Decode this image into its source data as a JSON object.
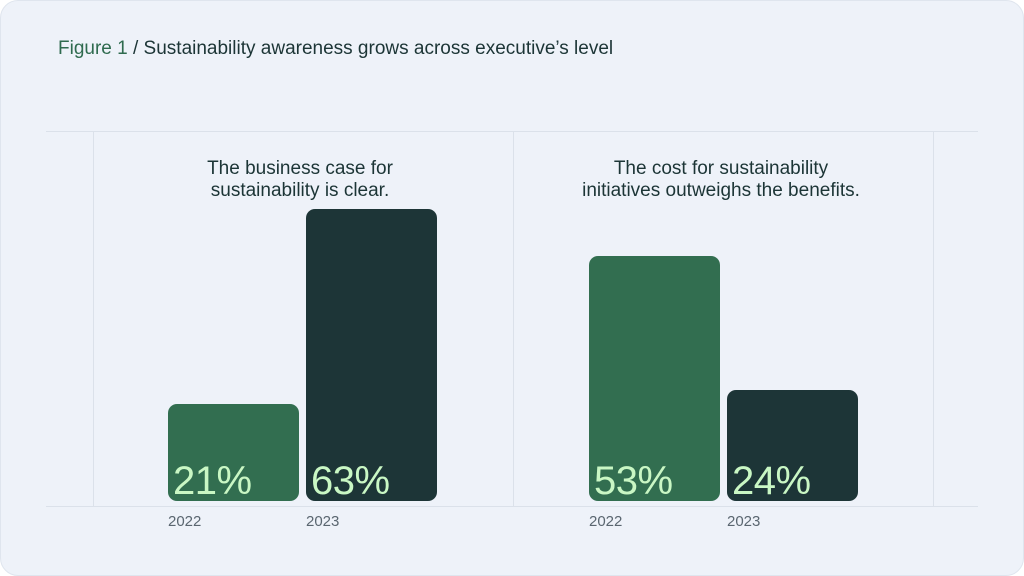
{
  "figure": {
    "number_label": "Figure 1",
    "separator": "/",
    "title": "Sustainability awareness grows across executive’s level"
  },
  "colors": {
    "year_2022": "#326e50",
    "year_2023": "#1d3537",
    "value_text": "#c9f7c4",
    "background": "#eef2f9"
  },
  "chart_data": [
    {
      "type": "bar",
      "title": "The business case for sustainability is clear.",
      "title_lines": [
        "The business case for",
        "sustainability is clear."
      ],
      "categories": [
        "2022",
        "2023"
      ],
      "values": [
        21,
        63
      ],
      "value_labels": [
        "21%",
        "63%"
      ],
      "unit": "%",
      "ylim": [
        0,
        100
      ],
      "grid": false
    },
    {
      "type": "bar",
      "title": "The cost for sustainability initiatives outweighs the benefits.",
      "title_lines": [
        "The cost for sustainability",
        "initiatives outweighs the benefits."
      ],
      "categories": [
        "2022",
        "2023"
      ],
      "values": [
        53,
        24
      ],
      "value_labels": [
        "53%",
        "24%"
      ],
      "unit": "%",
      "ylim": [
        0,
        100
      ],
      "grid": false
    }
  ]
}
